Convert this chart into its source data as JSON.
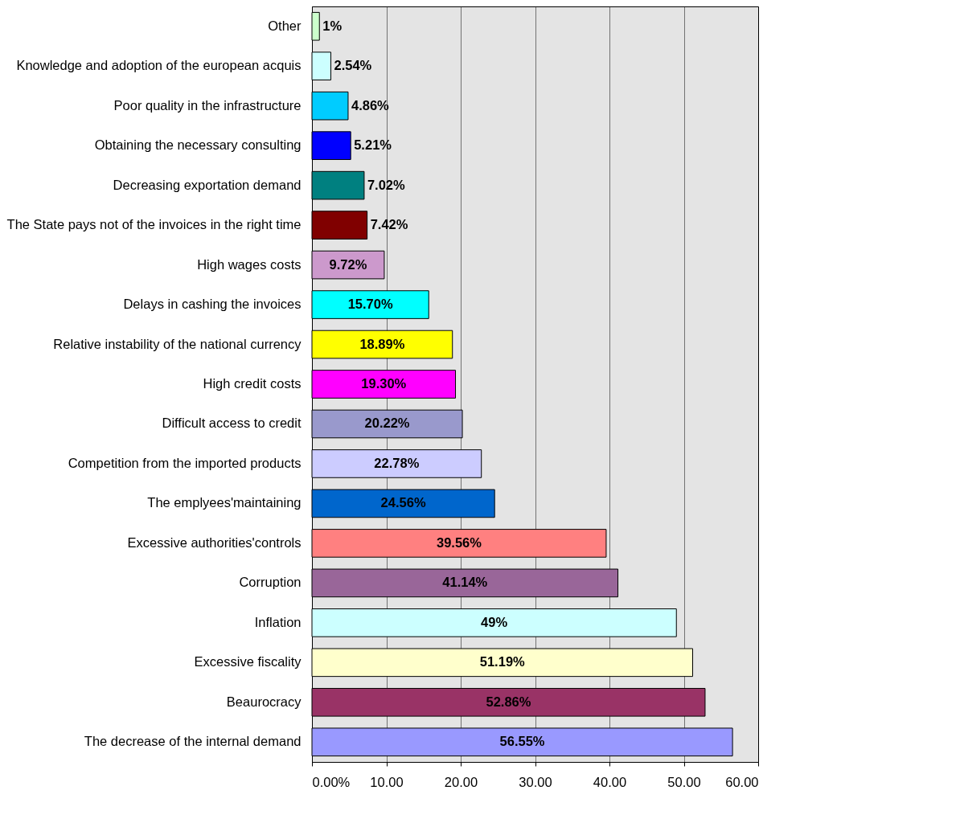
{
  "chart_data": {
    "type": "bar",
    "orientation": "horizontal",
    "categories": [
      "Other",
      "Knowledge and adoption of the european acquis",
      "Poor quality in the infrastructure",
      "Obtaining the necessary consulting",
      "Decreasing  exportation demand",
      "The State pays not of the invoices in the right time",
      "High wages costs",
      "Delays in cashing the invoices",
      "Relative instability of the national currency",
      "High credit costs",
      "Difficult access to credit",
      "Competition from the imported products",
      "The emplyees'maintaining",
      "Excessive authorities'controls",
      "Corruption",
      "Inflation",
      "Excessive fiscality",
      "Beaurocracy",
      "The decrease of the internal demand"
    ],
    "values": [
      1,
      2.54,
      4.86,
      5.21,
      7.02,
      7.42,
      9.72,
      15.7,
      18.89,
      19.3,
      20.22,
      22.78,
      24.56,
      39.56,
      41.14,
      49,
      51.19,
      52.86,
      56.55
    ],
    "value_labels": [
      "1%",
      "2.54%",
      "4.86%",
      "5.21%",
      "7.02%",
      "7.42%",
      "9.72%",
      "15.70%",
      "18.89%",
      "19.30%",
      "20.22%",
      "22.78%",
      "24.56%",
      "39.56%",
      "41.14%",
      "49%",
      "51.19%",
      "52.86%",
      "56.55%"
    ],
    "colors": [
      "#ccffcc",
      "#ccffff",
      "#00ccff",
      "#0000ff",
      "#008080",
      "#800000",
      "#cc99cc",
      "#00ffff",
      "#ffff00",
      "#ff00ff",
      "#9999cc",
      "#ccccff",
      "#0066cc",
      "#ff8080",
      "#996699",
      "#ccffff",
      "#ffffcc",
      "#993366",
      "#9999ff"
    ],
    "xlim": [
      0,
      60
    ],
    "xticks": [
      {
        "value": 0,
        "label": "0.00%"
      },
      {
        "value": 10,
        "label": "10.00"
      },
      {
        "value": 20,
        "label": "20.00"
      },
      {
        "value": 30,
        "label": "30.00"
      },
      {
        "value": 40,
        "label": "40.00"
      },
      {
        "value": 50,
        "label": "50.00"
      },
      {
        "value": 60,
        "label": "60.00"
      }
    ],
    "grid": "x"
  }
}
